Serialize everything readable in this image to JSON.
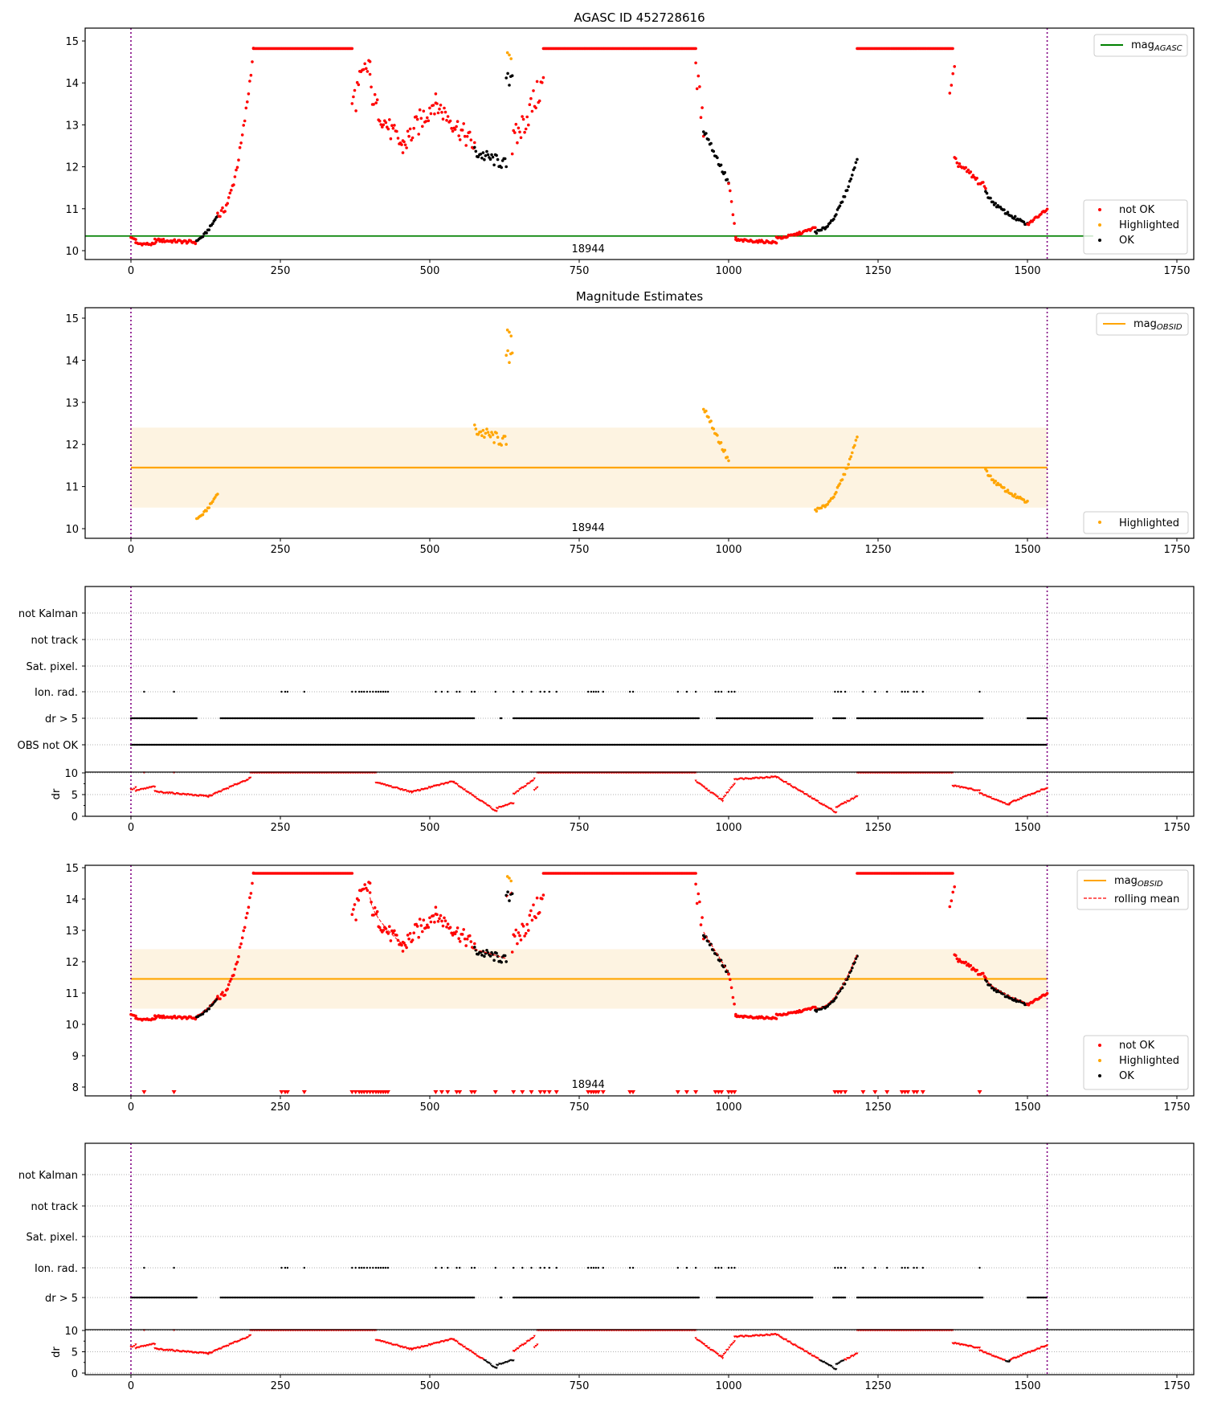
{
  "chart_data": {
    "type": "scatter",
    "title": "AGASC ID 452728616",
    "subtitle": "Magnitude Estimates",
    "annotation": "18944",
    "xlim": [
      -77,
      1778
    ],
    "xticks": [
      "0",
      "250",
      "500",
      "750",
      "1000",
      "1250",
      "1500",
      "1750"
    ],
    "xtick_values": [
      0,
      250,
      500,
      750,
      1000,
      1250,
      1500,
      1750
    ],
    "obsid_window": [
      0,
      1533
    ],
    "mag_agasc": 10.35,
    "mag_agasc_extent": [
      -77,
      1610
    ],
    "mag_obsid": 11.45,
    "mag_obsid_band": [
      10.5,
      12.4
    ],
    "colors": {
      "not_ok": "#ff0000",
      "highlighted": "#ffa500",
      "ok": "#000000",
      "agasc": "#008000",
      "obsid": "#ffa500",
      "band": "#fdf3e1",
      "window": "#800080"
    },
    "panels": {
      "agasc": {
        "ylim": [
          9.77,
          15.33
        ],
        "yticks": [
          "10",
          "11",
          "12",
          "13",
          "14",
          "15"
        ],
        "legend_line": {
          "label": "mag",
          "sub": "AGASC"
        },
        "legend_points": [
          "not OK",
          "Highlighted",
          "OK"
        ]
      },
      "estimates": {
        "ylim": [
          9.77,
          15.33
        ],
        "yticks": [
          "10",
          "11",
          "12",
          "13",
          "14",
          "15"
        ],
        "legend_line": {
          "label": "mag",
          "sub": "OBSID"
        },
        "legend_points": [
          "Highlighted"
        ]
      },
      "flags1": {
        "row_labels": [
          "not Kalman",
          "not track",
          "Sat. pixel.",
          "Ion. rad.",
          "dr > 5",
          "OBS not OK"
        ],
        "dr_label": "dr",
        "dr_ticks": [
          "0",
          "5",
          "10"
        ]
      },
      "combined": {
        "ylim": [
          7.7,
          15.2
        ],
        "yticks": [
          "8",
          "9",
          "10",
          "11",
          "12",
          "13",
          "14",
          "15"
        ],
        "legend_line": {
          "label": "mag",
          "sub": "OBSID"
        },
        "legend_dashed": "rolling mean",
        "legend_points": [
          "not OK",
          "Highlighted",
          "OK"
        ]
      },
      "flags2": {
        "row_labels": [
          "not Kalman",
          "not track",
          "Sat. pixel.",
          "Ion. rad.",
          "dr > 5"
        ],
        "dr_label": "dr",
        "dr_ticks": [
          "0",
          "5",
          "10"
        ]
      }
    },
    "mag_segments_columns": [
      "t_start",
      "t_end",
      "mag_start",
      "mag_end",
      "status",
      "scatter",
      "curve_exp"
    ],
    "mag_segments": [
      [
        0,
        8,
        10.3,
        10.28,
        "notok",
        0.03,
        1
      ],
      [
        8,
        40,
        10.17,
        10.15,
        "notok",
        0.03,
        1
      ],
      [
        40,
        110,
        10.25,
        10.2,
        "notok",
        0.04,
        1
      ],
      [
        110,
        145,
        10.25,
        10.85,
        "ok",
        0.03,
        1.5
      ],
      [
        145,
        205,
        10.85,
        14.8,
        "notok",
        0.1,
        2
      ],
      [
        205,
        370,
        14.82,
        14.82,
        "notok",
        0,
        1
      ],
      [
        370,
        400,
        13.5,
        14.5,
        "notok",
        0.4,
        1
      ],
      [
        400,
        455,
        14.0,
        12.5,
        "notok",
        0.25,
        0.6
      ],
      [
        455,
        510,
        12.5,
        13.6,
        "notok",
        0.3,
        1
      ],
      [
        510,
        575,
        13.5,
        12.5,
        "notok",
        0.25,
        1
      ],
      [
        575,
        628,
        12.35,
        12.05,
        "ok",
        0.15,
        1
      ],
      [
        628,
        638,
        14.0,
        14.2,
        "ok",
        0.2,
        1
      ],
      [
        630,
        636,
        14.8,
        14.6,
        "highlighted",
        0.1,
        1
      ],
      [
        638,
        690,
        12.5,
        14.0,
        "notok",
        0.35,
        1
      ],
      [
        690,
        945,
        14.82,
        14.82,
        "notok",
        0,
        1
      ],
      [
        945,
        958,
        14.4,
        12.9,
        "notok",
        0.3,
        1
      ],
      [
        958,
        1000,
        12.9,
        11.6,
        "ok",
        0.08,
        1
      ],
      [
        1000,
        1012,
        11.6,
        10.35,
        "notok",
        0.1,
        1
      ],
      [
        1012,
        1080,
        10.25,
        10.2,
        "notok",
        0.03,
        1
      ],
      [
        1080,
        1145,
        10.3,
        10.55,
        "notok",
        0.03,
        1.5
      ],
      [
        1145,
        1215,
        10.45,
        12.2,
        "ok",
        0.04,
        2
      ],
      [
        1215,
        1375,
        14.82,
        14.82,
        "notok",
        0,
        1
      ],
      [
        1370,
        1378,
        13.6,
        14.2,
        "notok",
        0.3,
        1
      ],
      [
        1378,
        1430,
        12.15,
        11.5,
        "notok",
        0.08,
        1
      ],
      [
        1430,
        1500,
        11.45,
        10.62,
        "ok",
        0.04,
        0.6
      ],
      [
        1500,
        1533,
        10.62,
        11.0,
        "notok",
        0.03,
        1
      ]
    ],
    "dr_segments_columns": [
      "t_start",
      "t_end",
      "dr_start",
      "dr_end"
    ],
    "dr_segments": [
      [
        0,
        8,
        6,
        6.5
      ],
      [
        8,
        40,
        5.8,
        6.8
      ],
      [
        40,
        130,
        5.6,
        4.5
      ],
      [
        130,
        200,
        4.5,
        8.7
      ],
      [
        200,
        410,
        10,
        10
      ],
      [
        410,
        470,
        7.7,
        5.5
      ],
      [
        470,
        540,
        5.5,
        8
      ],
      [
        540,
        612,
        7.8,
        1
      ],
      [
        612,
        640,
        1.8,
        3
      ],
      [
        640,
        675,
        5,
        8.5
      ],
      [
        675,
        680,
        6,
        6.5
      ],
      [
        680,
        945,
        10,
        10
      ],
      [
        945,
        990,
        8,
        3.5
      ],
      [
        990,
        1010,
        4,
        7.5
      ],
      [
        1010,
        1080,
        8.5,
        9
      ],
      [
        1080,
        1180,
        9,
        0.8
      ],
      [
        1180,
        1215,
        2,
        4.5
      ],
      [
        1215,
        1375,
        10,
        10
      ],
      [
        1375,
        1420,
        7,
        5.8
      ],
      [
        1420,
        1470,
        5.2,
        2.5
      ],
      [
        1470,
        1533,
        3,
        6.5
      ]
    ],
    "dr_gt5_ranges": [
      [
        0,
        110
      ],
      [
        150,
        575
      ],
      [
        618,
        620
      ],
      [
        640,
        950
      ],
      [
        980,
        1140
      ],
      [
        1175,
        1195
      ],
      [
        1215,
        1425
      ],
      [
        1500,
        1533
      ]
    ],
    "ion_rad_times": [
      22,
      72,
      252,
      258,
      262,
      290,
      370,
      376,
      382,
      386,
      390,
      395,
      400,
      405,
      410,
      414,
      418,
      422,
      426,
      430,
      510,
      520,
      530,
      545,
      550,
      570,
      575,
      610,
      640,
      655,
      670,
      685,
      692,
      700,
      712,
      765,
      770,
      774,
      778,
      782,
      790,
      835,
      840,
      915,
      930,
      945,
      978,
      983,
      988,
      1000,
      1005,
      1010,
      1178,
      1183,
      1188,
      1195,
      1225,
      1245,
      1265,
      1290,
      1295,
      1300,
      1310,
      1315,
      1325,
      1420
    ]
  }
}
